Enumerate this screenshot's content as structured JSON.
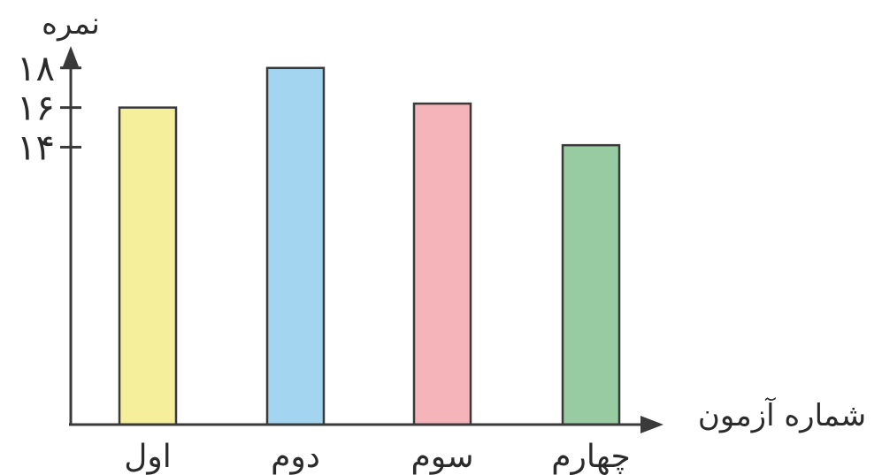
{
  "chart_data": {
    "type": "bar",
    "xlabel": "شماره آزمون",
    "ylabel": "نمره",
    "categories": [
      "اول",
      "دوم",
      "سوم",
      "چهارم"
    ],
    "values": [
      16,
      18,
      16.2,
      14.1
    ],
    "yticks": [
      {
        "value": 14,
        "label": "۱۴"
      },
      {
        "value": 16,
        "label": "۱۶"
      },
      {
        "value": 18,
        "label": "۱۸"
      }
    ],
    "ylim": [
      0,
      18
    ],
    "grid": false,
    "legend": "none",
    "bar_colors": [
      "#f5ee9b",
      "#a3d5f0",
      "#f5b4ba",
      "#99cba2"
    ],
    "axis_color": "#3a3a3a"
  }
}
